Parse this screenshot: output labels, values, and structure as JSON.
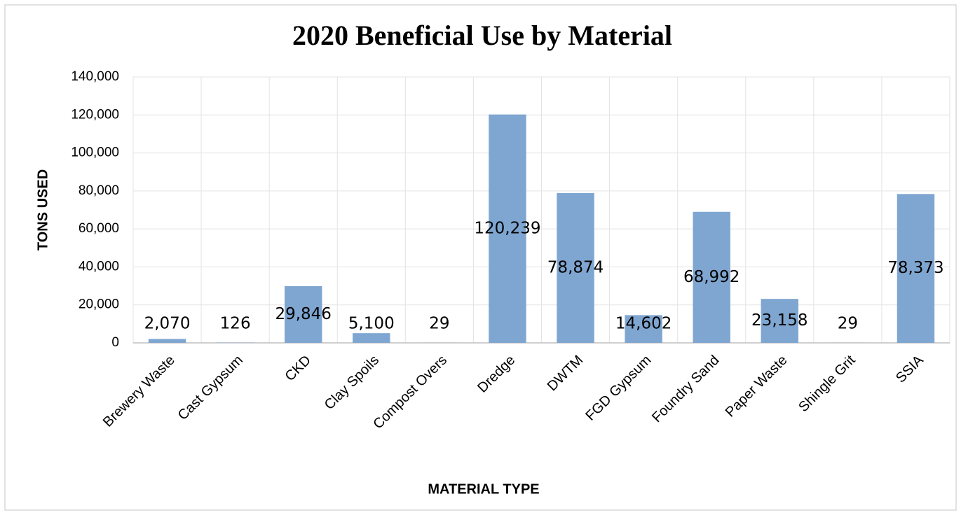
{
  "chart_data": {
    "type": "bar",
    "title": "2020 Beneficial Use by Material",
    "x_label": "MATERIAL TYPE",
    "y_label": "TONS USED",
    "categories": [
      "Brewery Waste",
      "Cast Gypsum",
      "CKD",
      "Clay Spoils",
      "Compost Overs",
      "Dredge",
      "DWTM",
      "FGD Gypsum",
      "Foundry Sand",
      "Paper Waste",
      "Shingle Grit",
      "SSIA"
    ],
    "values": [
      2070,
      126,
      29846,
      5100,
      29,
      120239,
      78874,
      14602,
      68992,
      23158,
      29,
      78373
    ],
    "value_labels": [
      "2,070",
      "126",
      "29,846",
      "5,100",
      "29",
      "120,239",
      "78,874",
      "14,602",
      "68,992",
      "23,158",
      "29",
      "78,373"
    ],
    "color": "#7fa6d1",
    "ylim": [
      0,
      140000
    ],
    "yticks": [
      0,
      {
        "value": 20000,
        "label": "20,000"
      },
      {
        "value": 40000,
        "label": "40,000"
      },
      {
        "value": 60000,
        "label": "60,000"
      },
      {
        "value": 80000,
        "label": "80,000"
      },
      {
        "value": 100000,
        "label": "100,000"
      },
      {
        "value": 120000,
        "label": "120,000"
      },
      {
        "value": 140000,
        "label": "140,000"
      }
    ],
    "grid": true
  }
}
